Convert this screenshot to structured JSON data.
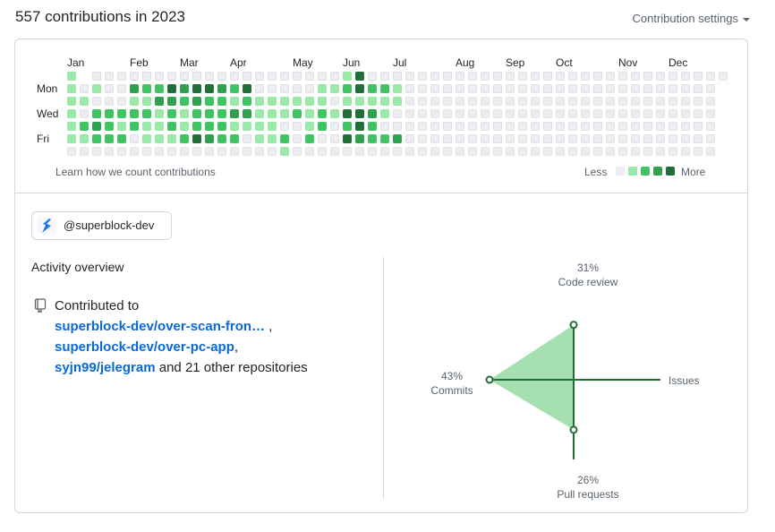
{
  "header": {
    "title": "557 contributions in 2023",
    "settings_label": "Contribution settings"
  },
  "graph": {
    "months": [
      "Jan",
      "Feb",
      "Mar",
      "Apr",
      "May",
      "Jun",
      "Jul",
      "Aug",
      "Sep",
      "Oct",
      "Nov",
      "Dec"
    ],
    "day_labels": [
      "Mon",
      "Wed",
      "Fri"
    ],
    "footer_link": "Learn how we count contributions",
    "legend_less": "Less",
    "legend_more": "More",
    "colors": [
      "#ebedf0",
      "#9be9a8",
      "#40c463",
      "#30a14e",
      "#216e39"
    ],
    "weeks": [
      [
        1,
        1,
        1,
        1,
        1,
        1,
        0
      ],
      [
        null,
        0,
        1,
        0,
        2,
        1,
        0
      ],
      [
        0,
        1,
        0,
        2,
        3,
        2,
        0
      ],
      [
        0,
        0,
        0,
        2,
        2,
        2,
        0
      ],
      [
        0,
        0,
        0,
        2,
        1,
        2,
        0
      ],
      [
        0,
        3,
        1,
        2,
        2,
        0,
        0
      ],
      [
        0,
        2,
        1,
        2,
        1,
        1,
        0
      ],
      [
        0,
        2,
        3,
        1,
        1,
        1,
        0
      ],
      [
        0,
        4,
        3,
        2,
        2,
        1,
        0
      ],
      [
        0,
        3,
        2,
        1,
        1,
        2,
        0
      ],
      [
        0,
        4,
        3,
        2,
        2,
        4,
        0
      ],
      [
        0,
        4,
        2,
        2,
        2,
        3,
        0
      ],
      [
        0,
        3,
        2,
        2,
        2,
        2,
        0
      ],
      [
        0,
        2,
        1,
        3,
        1,
        2,
        0
      ],
      [
        0,
        4,
        2,
        3,
        1,
        0,
        0
      ],
      [
        0,
        0,
        1,
        1,
        1,
        1,
        0
      ],
      [
        0,
        0,
        1,
        1,
        1,
        1,
        0
      ],
      [
        0,
        0,
        1,
        1,
        0,
        2,
        1
      ],
      [
        0,
        0,
        1,
        2,
        0,
        0,
        0
      ],
      [
        0,
        0,
        1,
        1,
        1,
        2,
        0
      ],
      [
        0,
        1,
        1,
        2,
        2,
        0,
        0
      ],
      [
        0,
        1,
        0,
        1,
        0,
        0,
        0
      ],
      [
        1,
        2,
        1,
        4,
        2,
        4,
        0
      ],
      [
        4,
        4,
        1,
        4,
        4,
        3,
        0
      ],
      [
        0,
        2,
        1,
        3,
        2,
        2,
        0
      ],
      [
        0,
        2,
        1,
        1,
        0,
        2,
        0
      ],
      [
        0,
        1,
        1,
        0,
        0,
        3,
        0
      ],
      [
        0,
        0,
        0,
        0,
        0,
        0,
        0
      ],
      [
        0,
        0,
        0,
        0,
        0,
        0,
        0
      ],
      [
        0,
        0,
        0,
        0,
        0,
        0,
        0
      ],
      [
        0,
        0,
        0,
        0,
        0,
        0,
        0
      ],
      [
        0,
        0,
        0,
        0,
        0,
        0,
        0
      ],
      [
        0,
        0,
        0,
        0,
        0,
        0,
        0
      ],
      [
        0,
        0,
        0,
        0,
        0,
        0,
        0
      ],
      [
        0,
        0,
        0,
        0,
        0,
        0,
        0
      ],
      [
        0,
        0,
        0,
        0,
        0,
        0,
        0
      ],
      [
        0,
        0,
        0,
        0,
        0,
        0,
        0
      ],
      [
        0,
        0,
        0,
        0,
        0,
        0,
        0
      ],
      [
        0,
        0,
        0,
        0,
        0,
        0,
        0
      ],
      [
        0,
        0,
        0,
        0,
        0,
        0,
        0
      ],
      [
        0,
        0,
        0,
        0,
        0,
        0,
        0
      ],
      [
        0,
        0,
        0,
        0,
        0,
        0,
        0
      ],
      [
        0,
        0,
        0,
        0,
        0,
        0,
        0
      ],
      [
        0,
        0,
        0,
        0,
        0,
        0,
        0
      ],
      [
        0,
        0,
        0,
        0,
        0,
        0,
        0
      ],
      [
        0,
        0,
        0,
        0,
        0,
        0,
        0
      ],
      [
        0,
        0,
        0,
        0,
        0,
        0,
        0
      ],
      [
        0,
        0,
        0,
        0,
        0,
        0,
        0
      ],
      [
        0,
        0,
        0,
        0,
        0,
        0,
        0
      ],
      [
        0,
        0,
        0,
        0,
        0,
        0,
        0
      ],
      [
        0,
        0,
        0,
        0,
        0,
        0,
        0
      ],
      [
        0,
        0,
        0,
        0,
        0,
        0,
        0
      ],
      [
        0,
        null,
        null,
        null,
        null,
        null,
        null
      ]
    ]
  },
  "org": {
    "label": "@superblock-dev",
    "icon": "superblock-logo"
  },
  "activity": {
    "title": "Activity overview",
    "contributed_to": "Contributed to",
    "repos": [
      "superblock-dev/over-scan-fron…",
      "superblock-dev/over-pc-app",
      "syjn99/jelegram"
    ],
    "sep1": " ,",
    "sep2": ",",
    "others": " and 21 other repositories"
  },
  "radar": {
    "accent": "#216e39",
    "fill": "#a6e0b1",
    "code_review": {
      "pct": "31%",
      "label": "Code review",
      "value": 31
    },
    "issues": {
      "label": "Issues",
      "value": 0
    },
    "pull_requests": {
      "pct": "26%",
      "label": "Pull requests",
      "value": 26
    },
    "commits": {
      "pct": "43%",
      "label": "Commits",
      "value": 43
    }
  }
}
